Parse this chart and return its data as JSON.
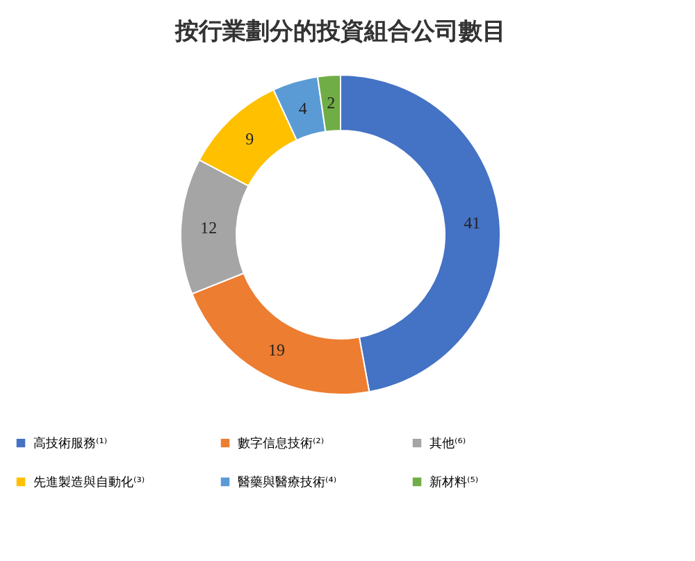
{
  "chart_data": {
    "type": "donut",
    "title": "按行業劃分的投資組合公司數目",
    "categories": [
      "高技術服務⁽¹⁾",
      "數字信息技術⁽²⁾",
      "其他⁽⁶⁾",
      "先進製造與自動化⁽³⁾",
      "醫藥與醫療技術⁽⁴⁾",
      "新材料⁽⁵⁾"
    ],
    "values": [
      41,
      19,
      12,
      9,
      4,
      2
    ],
    "colors": [
      "#4472c4",
      "#ed7d31",
      "#a5a5a5",
      "#ffc000",
      "#5b9bd5",
      "#70ad47"
    ],
    "data_labels": true,
    "legend": "bottom"
  }
}
